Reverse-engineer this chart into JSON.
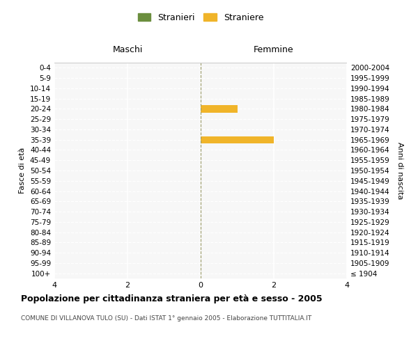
{
  "age_groups": [
    "100+",
    "95-99",
    "90-94",
    "85-89",
    "80-84",
    "75-79",
    "70-74",
    "65-69",
    "60-64",
    "55-59",
    "50-54",
    "45-49",
    "40-44",
    "35-39",
    "30-34",
    "25-29",
    "20-24",
    "15-19",
    "10-14",
    "5-9",
    "0-4"
  ],
  "birth_years": [
    "≤ 1904",
    "1905-1909",
    "1910-1914",
    "1915-1919",
    "1920-1924",
    "1925-1929",
    "1930-1934",
    "1935-1939",
    "1940-1944",
    "1945-1949",
    "1950-1954",
    "1955-1959",
    "1960-1964",
    "1965-1969",
    "1970-1974",
    "1975-1979",
    "1980-1984",
    "1985-1989",
    "1990-1994",
    "1995-1999",
    "2000-2004"
  ],
  "maschi_stranieri": [
    0,
    0,
    0,
    0,
    0,
    0,
    0,
    0,
    0,
    0,
    0,
    0,
    0,
    0,
    0,
    0,
    0,
    0,
    0,
    0,
    0
  ],
  "femmine_straniere": [
    0,
    0,
    0,
    0,
    0,
    0,
    0,
    0,
    0,
    0,
    0,
    0,
    0,
    2,
    0,
    0,
    1,
    0,
    0,
    0,
    0
  ],
  "maschi_color": "#6b8e3e",
  "femmine_color": "#f0b429",
  "xlim": 4,
  "title": "Popolazione per cittadinanza straniera per età e sesso - 2005",
  "subtitle": "COMUNE DI VILLANOVA TULO (SU) - Dati ISTAT 1° gennaio 2005 - Elaborazione TUTTITALIA.IT",
  "ylabel_left": "Fasce di età",
  "ylabel_right": "Anni di nascita",
  "legend_stranieri": "Stranieri",
  "legend_straniere": "Straniere",
  "maschi_label": "Maschi",
  "femmine_label": "Femmine",
  "bg_color": "#ffffff",
  "plot_bg_color": "#f7f7f7",
  "grid_color": "#ffffff",
  "bar_height": 0.7
}
